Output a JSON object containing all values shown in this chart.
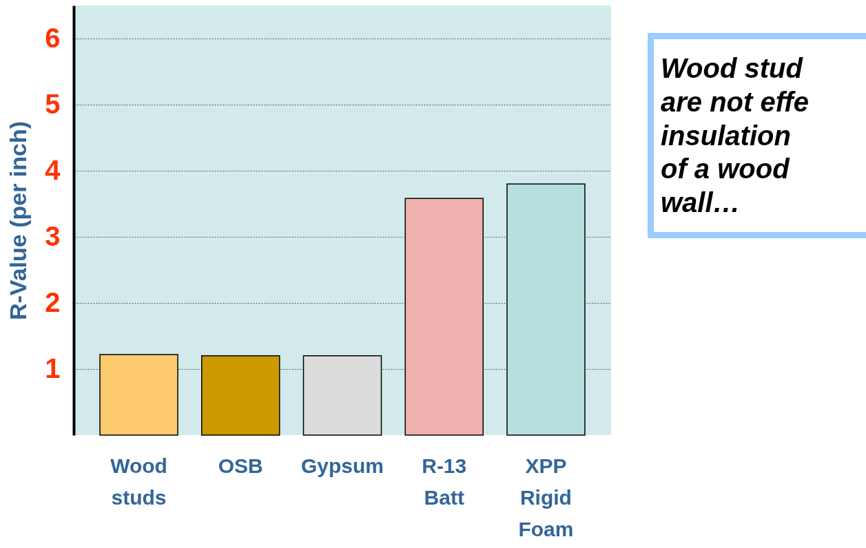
{
  "chart_data": {
    "type": "bar",
    "ylabel": "R-Value (per inch)",
    "categories": [
      "Wood studs",
      "OSB",
      "Gypsum",
      "R-13 Batt",
      "XPP Rigid Foam"
    ],
    "values": [
      1.22,
      1.2,
      1.2,
      3.58,
      3.8
    ],
    "colors": [
      "#fdcb6e",
      "#cc9900",
      "#dcdcdc",
      "#f0b2ae",
      "#b8dfe0"
    ],
    "ylim": [
      0,
      6.5
    ],
    "yticks": [
      1,
      2,
      3,
      4,
      5,
      6
    ],
    "grid": "y",
    "legend": false,
    "annotations": [
      "Wood stud\nare not effe\ninsulation\nof a wood\nwall…"
    ]
  }
}
